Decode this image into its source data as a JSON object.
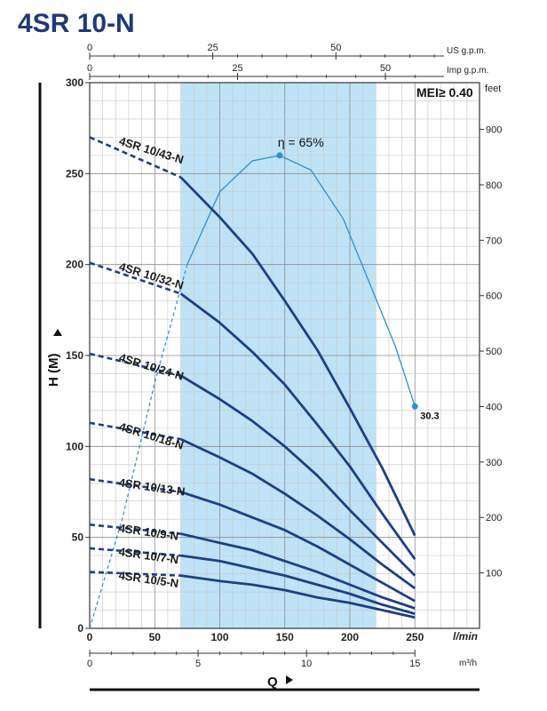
{
  "chart_data": {
    "type": "line",
    "title": "4SR 10-N",
    "mei_label": "MEI≥ 0.40",
    "ylabel": "H (M)",
    "ylabel_right": "feet",
    "xlabel": "Q",
    "x_unit": "l/min",
    "x_unit_m3h": "m³/h",
    "x_unit_us": "US g.p.m.",
    "x_unit_imp": "Imp g.p.m.",
    "xlim": [
      0,
      300
    ],
    "ylim": [
      0,
      300
    ],
    "xticks": [
      "0",
      "50",
      "100",
      "150",
      "200",
      "250"
    ],
    "yticks": [
      "0",
      "50",
      "100",
      "150",
      "200",
      "250",
      "300"
    ],
    "feet_ticks": [
      "100",
      "200",
      "300",
      "400",
      "500",
      "600",
      "700",
      "800",
      "900"
    ],
    "m3h_ticks": [
      "0",
      "5",
      "10",
      "15"
    ],
    "usgpm_ticks": [
      "0",
      "25",
      "50"
    ],
    "impgpm_ticks": [
      "0",
      "25",
      "50"
    ],
    "recommended_range_lpm": [
      70,
      220
    ],
    "series": [
      {
        "name": "4SR 10/43-N",
        "shutoff": 270,
        "x": [
          70,
          100,
          125,
          150,
          175,
          200,
          225,
          250
        ],
        "y": [
          248,
          226,
          206,
          180,
          153,
          121,
          88,
          51
        ]
      },
      {
        "name": "4SR 10/32-N",
        "shutoff": 201,
        "x": [
          70,
          100,
          125,
          150,
          175,
          200,
          225,
          250
        ],
        "y": [
          184,
          168,
          152,
          134,
          112,
          89,
          63,
          38
        ]
      },
      {
        "name": "4SR 10/24-N",
        "shutoff": 151,
        "x": [
          70,
          100,
          125,
          150,
          175,
          200,
          225,
          250
        ],
        "y": [
          139,
          126,
          114,
          100,
          84,
          65,
          47,
          29
        ]
      },
      {
        "name": "4SR 10/18-N",
        "shutoff": 113,
        "x": [
          70,
          100,
          125,
          150,
          175,
          200,
          225,
          250
        ],
        "y": [
          104,
          94,
          85,
          74,
          62,
          49,
          35,
          22
        ]
      },
      {
        "name": "4SR 10/13-N",
        "shutoff": 82,
        "x": [
          70,
          100,
          125,
          150,
          175,
          200,
          225,
          250
        ],
        "y": [
          75,
          68,
          61,
          54,
          45,
          35,
          25,
          15
        ]
      },
      {
        "name": "4SR 10/9-N",
        "shutoff": 57,
        "x": [
          70,
          100,
          125,
          150,
          175,
          200,
          225,
          250
        ],
        "y": [
          52,
          47,
          43,
          37,
          31,
          24,
          17,
          11
        ]
      },
      {
        "name": "4SR 10/7-N",
        "shutoff": 44,
        "x": [
          70,
          100,
          125,
          150,
          175,
          200,
          225,
          250
        ],
        "y": [
          40,
          37,
          33,
          29,
          24,
          19,
          13,
          8
        ]
      },
      {
        "name": "4SR 10/5-N",
        "shutoff": 31,
        "x": [
          70,
          100,
          125,
          150,
          175,
          200,
          225,
          250
        ],
        "y": [
          29,
          26,
          24,
          21,
          17,
          14,
          10,
          6
        ]
      }
    ],
    "efficiency": {
      "peak_label": "η = 65%",
      "end_label": "30.3",
      "peak": [
        146,
        260
      ],
      "end": [
        250,
        122
      ],
      "x": [
        0,
        25,
        50,
        75,
        100,
        125,
        146,
        170,
        195,
        215,
        235,
        250
      ],
      "y": [
        0,
        60,
        135,
        200,
        240,
        257,
        260,
        252,
        225,
        190,
        155,
        122
      ]
    }
  }
}
